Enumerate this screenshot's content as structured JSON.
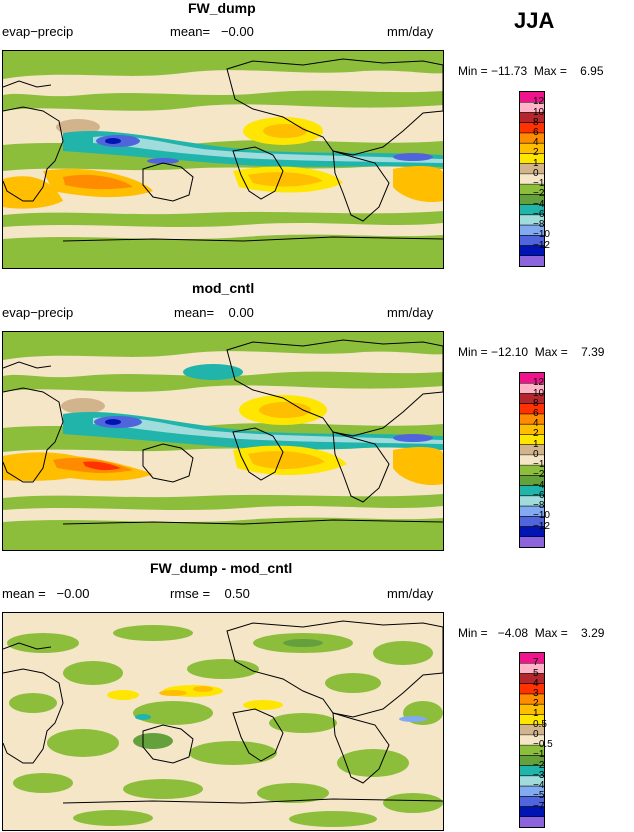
{
  "season": "JJA",
  "palette_main": [
    "#f0148c",
    "#ffb4c8",
    "#b4282d",
    "#ff3200",
    "#ff8c00",
    "#ffbe00",
    "#ffe600",
    "#d2b48c",
    "#f5e6c8",
    "#8cbe3c",
    "#64a03c",
    "#20b4aa",
    "#a0dcdc",
    "#82aaf0",
    "#5064dc",
    "#0014b4",
    "#8c64dc"
  ],
  "palette_diff": [
    "#f0148c",
    "#ffb4c8",
    "#b4282d",
    "#ff3200",
    "#ff8c00",
    "#ffbe00",
    "#ffe600",
    "#d2b48c",
    "#f5e6c8",
    "#8cbe3c",
    "#64a03c",
    "#20b4aa",
    "#a0dcdc",
    "#82aaf0",
    "#5064dc",
    "#0014b4",
    "#8c64dc"
  ],
  "panels": [
    {
      "title": "FW_dump",
      "left_label": "evap−precip",
      "center_label": "mean=   −0.00",
      "units": "mm/day",
      "min_label": "Min = −11.73  Max =    6.95",
      "ticks": [
        "12",
        "10",
        "8",
        "6",
        "4",
        "2",
        "1",
        "0",
        "−1",
        "−2",
        "−4",
        "−6",
        "−8",
        "−10",
        "−12"
      ]
    },
    {
      "title": "mod_cntl",
      "left_label": "evap−precip",
      "center_label": "mean=    0.00",
      "units": "mm/day",
      "min_label": "Min = −12.10  Max =    7.39",
      "ticks": [
        "12",
        "10",
        "8",
        "6",
        "4",
        "2",
        "1",
        "0",
        "−1",
        "−2",
        "−4",
        "−6",
        "−8",
        "−10",
        "−12"
      ]
    },
    {
      "title": "FW_dump - mod_cntl",
      "left_label": "mean =   −0.00",
      "center_label": "rmse =    0.50",
      "units": "mm/day",
      "min_label": "Min =   −4.08  Max =    3.29",
      "ticks": [
        "7",
        "5",
        "4",
        "3",
        "2",
        "1",
        "0.5",
        "0",
        "−0.5",
        "−1",
        "−2",
        "−3",
        "−4",
        "−5",
        "−7"
      ]
    }
  ],
  "chart_data": [
    {
      "type": "heatmap",
      "title": "FW_dump",
      "variable": "evap−precip",
      "units": "mm/day",
      "season": "JJA",
      "mean": -0.0,
      "min": -11.73,
      "max": 6.95,
      "levels": [
        12,
        10,
        8,
        6,
        4,
        2,
        1,
        0,
        -1,
        -2,
        -4,
        -6,
        -8,
        -10,
        -12
      ]
    },
    {
      "type": "heatmap",
      "title": "mod_cntl",
      "variable": "evap−precip",
      "units": "mm/day",
      "season": "JJA",
      "mean": 0.0,
      "min": -12.1,
      "max": 7.39,
      "levels": [
        12,
        10,
        8,
        6,
        4,
        2,
        1,
        0,
        -1,
        -2,
        -4,
        -6,
        -8,
        -10,
        -12
      ]
    },
    {
      "type": "heatmap",
      "title": "FW_dump - mod_cntl",
      "units": "mm/day",
      "season": "JJA",
      "mean": -0.0,
      "rmse": 0.5,
      "min": -4.08,
      "max": 3.29,
      "levels": [
        7,
        5,
        4,
        3,
        2,
        1,
        0.5,
        0,
        -0.5,
        -1,
        -2,
        -3,
        -4,
        -5,
        -7
      ]
    }
  ]
}
